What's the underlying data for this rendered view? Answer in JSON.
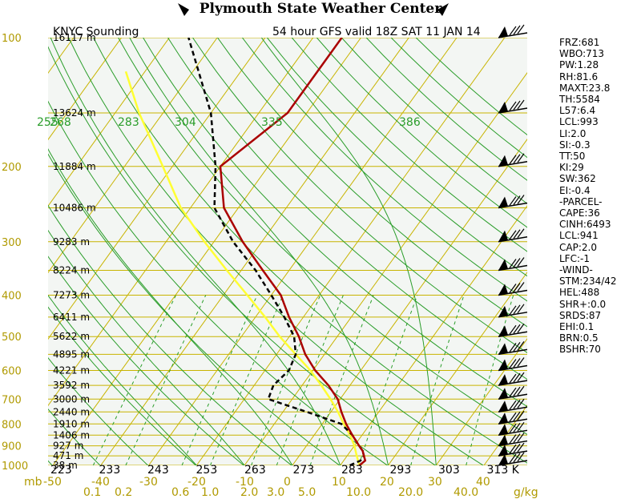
{
  "header": {
    "title": "Plymouth State Weather Center"
  },
  "plot": {
    "station_label": "KNYC Sounding",
    "valid_label": "54 hour GFS valid 18Z SAT 11 JAN 14",
    "colors": {
      "background": "#f3f6f3",
      "grid_yellow": "#c8b400",
      "dry_adiabat": "#2a9d2a",
      "moist_adiabat": "#2a9d2a",
      "mixing_ratio": "#2a9d2a",
      "temperature": "#aa0000",
      "dewpoint": "#000000",
      "parcel": "#ffff33",
      "height_label": "#000000",
      "axis_label": "#b09a00"
    }
  },
  "chart_data": {
    "type": "skew-t",
    "pressure_levels": [
      100,
      200,
      300,
      400,
      500,
      600,
      700,
      800,
      900,
      1000
    ],
    "pressure_axis_label": "mb",
    "height_labels": [
      {
        "p": 100,
        "text": "16117 m"
      },
      {
        "p": 150,
        "text": "13624 m"
      },
      {
        "p": 200,
        "text": "11884 m"
      },
      {
        "p": 250,
        "text": "10486 m"
      },
      {
        "p": 300,
        "text": "9283 m"
      },
      {
        "p": 350,
        "text": "8224 m"
      },
      {
        "p": 400,
        "text": "7273 m"
      },
      {
        "p": 450,
        "text": "6411 m"
      },
      {
        "p": 500,
        "text": "5622 m"
      },
      {
        "p": 550,
        "text": "4895 m"
      },
      {
        "p": 600,
        "text": "4221 m"
      },
      {
        "p": 650,
        "text": "3592 m"
      },
      {
        "p": 700,
        "text": "3000 m"
      },
      {
        "p": 750,
        "text": "2440 m"
      },
      {
        "p": 800,
        "text": "1910 m"
      },
      {
        "p": 850,
        "text": "1406 m"
      },
      {
        "p": 900,
        "text": "927 m"
      },
      {
        "p": 950,
        "text": "471 m"
      },
      {
        "p": 1000,
        "text": "38 m"
      }
    ],
    "temperature_ticks": [
      "-50",
      "-40",
      "-30",
      "-20",
      "-10",
      "0",
      "10",
      "20",
      "30",
      "40"
    ],
    "theta_bottom_labels": [
      "223",
      "233",
      "243",
      "253",
      "263",
      "273",
      "283",
      "293",
      "303",
      "313 K"
    ],
    "theta_e_labels": [
      "255",
      "268",
      "283",
      "304",
      "335",
      "386"
    ],
    "mixing_ratio_labels": [
      "0.1",
      "0.2",
      "0.6",
      "1.0",
      "2.0",
      "3.0",
      "5.0",
      "10.0",
      "20.0",
      "40.0",
      "g/kg"
    ],
    "temperature_profile": [
      {
        "p": 1000,
        "t": 14
      },
      {
        "p": 975,
        "t": 14.5
      },
      {
        "p": 950,
        "t": 13.5
      },
      {
        "p": 925,
        "t": 12.5
      },
      {
        "p": 900,
        "t": 11
      },
      {
        "p": 850,
        "t": 8
      },
      {
        "p": 800,
        "t": 5
      },
      {
        "p": 750,
        "t": 2.2
      },
      {
        "p": 700,
        "t": -0.5
      },
      {
        "p": 650,
        "t": -4.5
      },
      {
        "p": 600,
        "t": -9.5
      },
      {
        "p": 550,
        "t": -14
      },
      {
        "p": 500,
        "t": -18
      },
      {
        "p": 450,
        "t": -23
      },
      {
        "p": 400,
        "t": -28
      },
      {
        "p": 350,
        "t": -35.5
      },
      {
        "p": 300,
        "t": -44
      },
      {
        "p": 250,
        "t": -53
      },
      {
        "p": 200,
        "t": -60
      },
      {
        "p": 150,
        "t": -54
      },
      {
        "p": 100,
        "t": -54
      }
    ],
    "dewpoint_profile": [
      {
        "p": 1000,
        "t": 12
      },
      {
        "p": 975,
        "t": 13.5
      },
      {
        "p": 950,
        "t": 13.5
      },
      {
        "p": 925,
        "t": 12.5
      },
      {
        "p": 900,
        "t": 11
      },
      {
        "p": 850,
        "t": 8
      },
      {
        "p": 800,
        "t": 4
      },
      {
        "p": 750,
        "t": -5
      },
      {
        "p": 700,
        "t": -15
      },
      {
        "p": 650,
        "t": -16
      },
      {
        "p": 600,
        "t": -15
      },
      {
        "p": 550,
        "t": -16
      },
      {
        "p": 500,
        "t": -19
      },
      {
        "p": 450,
        "t": -24
      },
      {
        "p": 400,
        "t": -30
      },
      {
        "p": 350,
        "t": -37
      },
      {
        "p": 300,
        "t": -46
      },
      {
        "p": 250,
        "t": -55
      },
      {
        "p": 200,
        "t": -61
      },
      {
        "p": 150,
        "t": -70
      },
      {
        "p": 100,
        "t": -86
      }
    ],
    "parcel_profile": [
      {
        "p": 1000,
        "t": 14
      },
      {
        "p": 950,
        "t": 12
      },
      {
        "p": 900,
        "t": 10
      },
      {
        "p": 850,
        "t": 7.5
      },
      {
        "p": 800,
        "t": 4.5
      },
      {
        "p": 750,
        "t": 1.5
      },
      {
        "p": 700,
        "t": -2
      },
      {
        "p": 650,
        "t": -6
      },
      {
        "p": 600,
        "t": -10.5
      },
      {
        "p": 550,
        "t": -16
      },
      {
        "p": 500,
        "t": -22
      },
      {
        "p": 450,
        "t": -28
      },
      {
        "p": 400,
        "t": -35
      },
      {
        "p": 350,
        "t": -43
      },
      {
        "p": 300,
        "t": -52
      },
      {
        "p": 250,
        "t": -62
      },
      {
        "p": 200,
        "t": -72
      },
      {
        "p": 150,
        "t": -85
      },
      {
        "p": 120,
        "t": -94
      }
    ],
    "wind_barb_levels": [
      100,
      150,
      200,
      250,
      300,
      350,
      400,
      450,
      500,
      550,
      600,
      650,
      700,
      750,
      800,
      850,
      900,
      950,
      1000
    ]
  },
  "indices": {
    "items": [
      "FRZ:681",
      "WBO:713",
      "PW:1.28",
      "RH:81.6",
      "MAXT:23.8",
      "TH:5584",
      "L57:6.4",
      "LCL:993",
      "LI:2.0",
      "SI:-0.3",
      "TT:50",
      "KI:29",
      "SW:362",
      "EI:-0.4",
      "-PARCEL-",
      "CAPE:36",
      "CINH:6493",
      "LCL:941",
      "CAP:2.0",
      "LFC:-1",
      "-WIND-",
      "STM:234/42",
      "HEL:488",
      "SHR+:0.0",
      "SRDS:87",
      "EHI:0.1",
      "BRN:0.5",
      "BSHR:70"
    ]
  }
}
